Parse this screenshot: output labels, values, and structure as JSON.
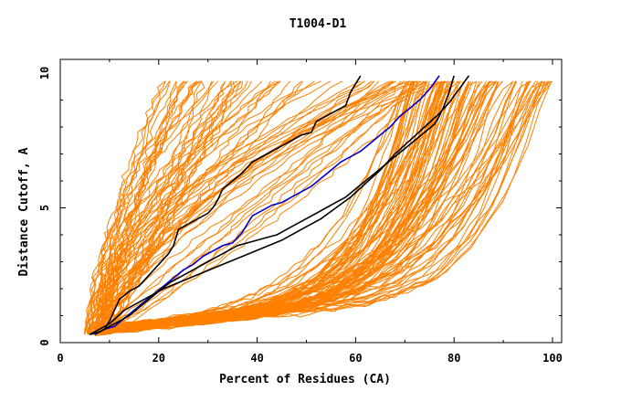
{
  "chart_data": {
    "type": "line",
    "title": "T1004-D1",
    "xlabel": "Percent of Residues (CA)",
    "ylabel": "Distance Cutoff, A",
    "xlim": [
      0,
      100
    ],
    "ylim": [
      0,
      10
    ],
    "xticks": [
      "0",
      "20",
      "40",
      "60",
      "80",
      "100"
    ],
    "yticks": [
      "0",
      "5",
      "10"
    ],
    "grid": false,
    "colors": {
      "orange": "#ff8000",
      "black": "#000000",
      "blue": "#0000cc",
      "frame": "#000000"
    },
    "highlight_series": [
      {
        "color": "black",
        "x": [
          7,
          9,
          10,
          11,
          12,
          14,
          16,
          18,
          20,
          22,
          23,
          24,
          26,
          28,
          30,
          31,
          32,
          33,
          35,
          37,
          39,
          41,
          43,
          45,
          47,
          49,
          51,
          52,
          53,
          54,
          56,
          58,
          59,
          60,
          61
        ],
        "y": [
          0.3,
          0.5,
          0.8,
          1.2,
          1.6,
          1.9,
          2.1,
          2.5,
          2.9,
          3.3,
          3.6,
          4.2,
          4.4,
          4.6,
          4.8,
          5.0,
          5.3,
          5.7,
          6.0,
          6.3,
          6.7,
          6.9,
          7.1,
          7.3,
          7.5,
          7.7,
          7.8,
          8.2,
          8.3,
          8.4,
          8.6,
          8.8,
          9.3,
          9.6,
          9.9
        ]
      },
      {
        "color": "blue",
        "x": [
          7,
          9,
          11,
          13,
          15,
          17,
          19,
          21,
          23,
          25,
          27,
          29,
          31,
          33,
          35,
          37,
          38,
          39,
          41,
          43,
          45,
          47,
          49,
          51,
          53,
          55,
          57,
          59,
          61,
          63,
          65,
          67,
          69,
          71,
          73,
          75,
          77
        ],
        "y": [
          0.3,
          0.5,
          0.6,
          0.9,
          1.2,
          1.5,
          1.8,
          2.1,
          2.4,
          2.7,
          2.9,
          3.2,
          3.4,
          3.6,
          3.7,
          4.1,
          4.4,
          4.7,
          4.9,
          5.1,
          5.2,
          5.4,
          5.6,
          5.8,
          6.1,
          6.4,
          6.7,
          6.9,
          7.1,
          7.4,
          7.7,
          8.0,
          8.4,
          8.7,
          9.0,
          9.4,
          9.9
        ]
      },
      {
        "color": "black",
        "x": [
          6,
          8,
          10,
          12,
          14,
          16,
          18,
          20,
          22,
          24,
          26,
          28,
          30,
          32,
          34,
          36,
          38,
          40,
          42,
          44,
          46,
          48,
          50,
          52,
          54,
          56,
          58,
          60,
          62,
          64,
          66,
          68,
          70,
          72,
          74,
          76,
          77,
          78,
          79,
          80
        ],
        "y": [
          0.3,
          0.4,
          0.6,
          0.8,
          1.0,
          1.3,
          1.6,
          1.9,
          2.2,
          2.4,
          2.6,
          2.8,
          3.0,
          3.2,
          3.4,
          3.6,
          3.7,
          3.8,
          3.9,
          4.0,
          4.2,
          4.4,
          4.6,
          4.8,
          5.0,
          5.2,
          5.4,
          5.7,
          6.0,
          6.3,
          6.6,
          6.9,
          7.2,
          7.5,
          7.8,
          8.1,
          8.4,
          8.8,
          9.3,
          9.9
        ]
      },
      {
        "color": "black",
        "x": [
          6,
          10,
          13,
          17,
          21,
          25,
          29,
          33,
          37,
          41,
          45,
          49,
          53,
          56,
          59,
          62,
          65,
          68,
          71,
          74,
          77,
          79,
          81,
          83
        ],
        "y": [
          0.3,
          0.7,
          1.2,
          1.6,
          2.0,
          2.3,
          2.6,
          2.9,
          3.2,
          3.5,
          3.8,
          4.2,
          4.6,
          5.0,
          5.4,
          5.9,
          6.4,
          7.0,
          7.5,
          8.0,
          8.5,
          8.9,
          9.4,
          9.9
        ]
      }
    ]
  }
}
